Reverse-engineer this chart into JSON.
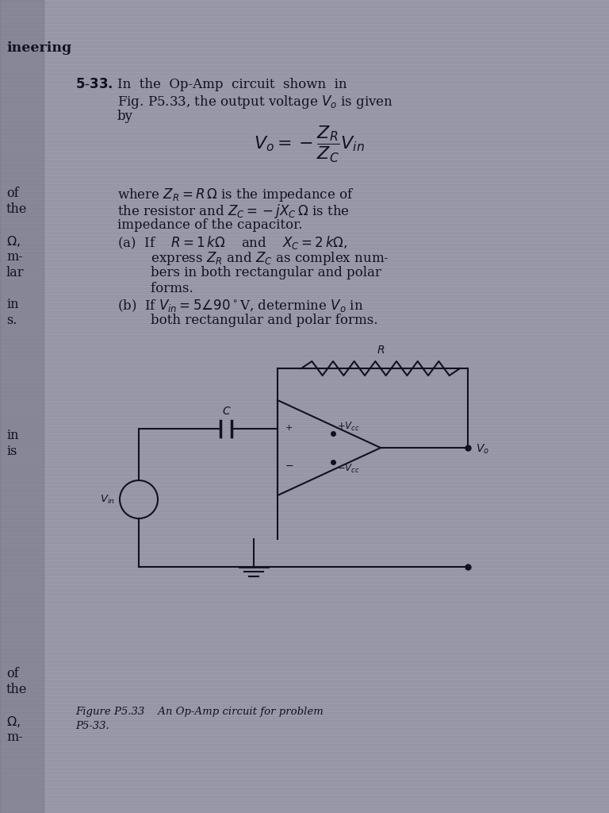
{
  "bg_color": "#9a9aaa",
  "text_color": "#111122",
  "circuit_color": "#111122",
  "scanline_color": "#777788",
  "left_edge_dark": "#707080",
  "title_bold": "5-33.",
  "title_rest": " In  the Op-Amp  circuit  shown  in",
  "title_line2": "Fig. P5.33, the output voltage $V_o$ is given",
  "title_line3": "by",
  "fig_caption_line1": "Figure P5.33    An Op-Amp circuit for problem",
  "fig_caption_line2": "P5-33."
}
